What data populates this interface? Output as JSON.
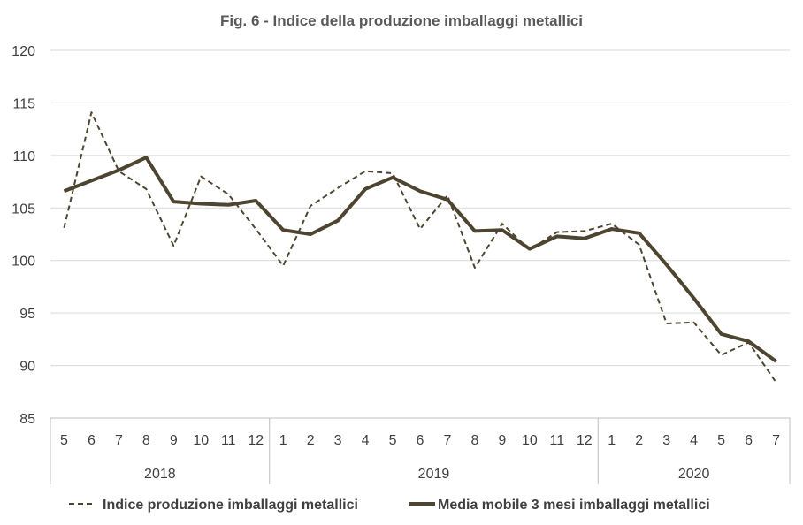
{
  "chart_data": {
    "type": "line",
    "title": "Fig. 6 - Indice della produzione imballaggi metallici",
    "ylim": [
      85,
      120
    ],
    "yticks": [
      85,
      90,
      95,
      100,
      105,
      110,
      115,
      120
    ],
    "categories": [
      "5",
      "6",
      "7",
      "8",
      "9",
      "10",
      "11",
      "12",
      "1",
      "2",
      "3",
      "4",
      "5",
      "6",
      "7",
      "8",
      "9",
      "10",
      "11",
      "12",
      "1",
      "2",
      "3",
      "4",
      "5",
      "6",
      "7"
    ],
    "groups": [
      {
        "label": "2018",
        "count": 8
      },
      {
        "label": "2019",
        "count": 12
      },
      {
        "label": "2020",
        "count": 7
      }
    ],
    "grid": true,
    "legend_position": "bottom",
    "series": [
      {
        "name": "Indice produzione imballaggi metallici",
        "style": "dashed",
        "color": "#4d4530",
        "values": [
          103.1,
          114.1,
          108.5,
          106.8,
          101.4,
          108.0,
          106.3,
          103.0,
          99.5,
          105.2,
          106.9,
          108.5,
          108.3,
          103.0,
          106.2,
          99.3,
          103.5,
          101.0,
          102.7,
          102.8,
          103.5,
          101.5,
          94.0,
          94.1,
          91.0,
          92.2,
          88.4
        ]
      },
      {
        "name": "Media mobile 3 mesi imballaggi metallici",
        "style": "solid",
        "color": "#4d4530",
        "values": [
          106.6,
          107.6,
          108.6,
          109.8,
          105.6,
          105.4,
          105.3,
          105.7,
          102.9,
          102.5,
          103.8,
          106.8,
          107.9,
          106.6,
          105.8,
          102.8,
          102.9,
          101.1,
          102.3,
          102.1,
          103.0,
          102.6,
          99.6,
          96.4,
          93.0,
          92.3,
          90.4
        ]
      }
    ]
  }
}
